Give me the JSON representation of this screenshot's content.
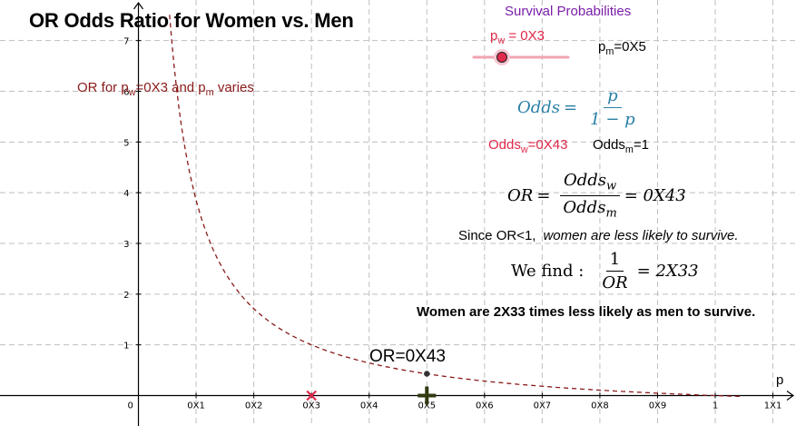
{
  "title": "OR Odds Ratio for Women vs. Men",
  "panel": {
    "title": "Survival Probabilities",
    "pw_label": {
      "main": "p",
      "sub": "w",
      "rest": " = 0X3"
    },
    "pm_label": {
      "main": "p",
      "sub": "m",
      "rest": "=0X5"
    },
    "slider_value": 0.3
  },
  "curve_label": {
    "pre": "OR for p",
    "sub1": "w",
    "mid": "=0X3 and p",
    "sub2": "m",
    "post": " varies"
  },
  "odds_formula": {
    "lhs": "Odds",
    "eq": "=",
    "num": "p",
    "den": "1 − p"
  },
  "odds_w": {
    "main": "Odds",
    "sub": "w",
    "rest": "=0X43"
  },
  "odds_m": {
    "main": "Odds",
    "sub": "m",
    "rest": "=1"
  },
  "or_formula": {
    "lhs": "OR",
    "eq": "=",
    "num": "Odds",
    "num_sub": "w",
    "den": "Odds",
    "den_sub": "m",
    "result": "= 0X43"
  },
  "since_text": {
    "plain": "Since OR<1,",
    "emph": "women are less likely to survive."
  },
  "we_find": {
    "label": "We find :",
    "num": "1",
    "den": "OR",
    "result": "= 2X33"
  },
  "conclusion": "Women are 2X33 times less likely as men to survive.",
  "or_point_label": "OR=0X43",
  "axis_label_p": "p",
  "colors": {
    "curve": "#8b1a1a",
    "title_purple": "#7a1fa8",
    "red": "#e0284a",
    "blue": "#2a7fa6",
    "grid": "#bfbfbf",
    "plus": "#2f3a10"
  },
  "chart_data": {
    "type": "line",
    "series": [
      {
        "name": "OR for pw=0X3 and pm varies",
        "function": "OR(pm) = (0.3/0.7) / (pm/(1-pm))",
        "style": "dashed"
      }
    ],
    "points": [
      {
        "name": "OR at pm",
        "x": 0.5,
        "y": 0.43
      },
      {
        "name": "pw marker",
        "x": 0.3,
        "y": 0
      },
      {
        "name": "pm marker",
        "x": 0.5,
        "y": 0
      }
    ],
    "xlim": [
      -0.24,
      1.14
    ],
    "ylim": [
      -0.6,
      7.8
    ],
    "x_ticks": [
      {
        "v": 0,
        "label": "0"
      },
      {
        "v": 0.1,
        "label": "0X1"
      },
      {
        "v": 0.2,
        "label": "0X2"
      },
      {
        "v": 0.3,
        "label": "0X3"
      },
      {
        "v": 0.4,
        "label": "0X4"
      },
      {
        "v": 0.5,
        "label": "0X5"
      },
      {
        "v": 0.6,
        "label": "0X6"
      },
      {
        "v": 0.7,
        "label": "0X7"
      },
      {
        "v": 0.8,
        "label": "0X8"
      },
      {
        "v": 0.9,
        "label": "0X9"
      },
      {
        "v": 1.0,
        "label": "1"
      },
      {
        "v": 1.1,
        "label": "1X1"
      }
    ],
    "y_ticks": [
      {
        "v": 1,
        "label": "1"
      },
      {
        "v": 2,
        "label": "2"
      },
      {
        "v": 3,
        "label": "3"
      },
      {
        "v": 4,
        "label": "4"
      },
      {
        "v": 5,
        "label": "5"
      },
      {
        "v": 6,
        "label": "6"
      },
      {
        "v": 7,
        "label": "7"
      }
    ],
    "grid": true
  }
}
